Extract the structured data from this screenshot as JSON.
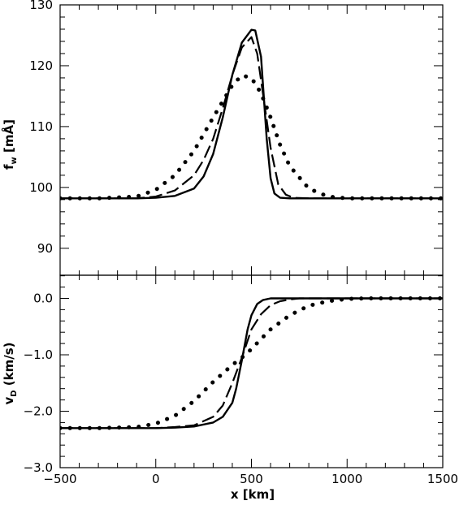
{
  "chart_data": [
    {
      "type": "line",
      "panel": "top",
      "xlim": [
        -500,
        1500
      ],
      "ylim": [
        90,
        130
      ],
      "xlabel": "",
      "ylabel_main": "f",
      "ylabel_sub": "w",
      "ylabel_unit": "[mÅ]",
      "yticks": [
        90,
        100,
        110,
        120,
        130
      ],
      "ytick_labels": [
        "90",
        "100",
        "110",
        "120",
        "130"
      ],
      "grid": false,
      "series": [
        {
          "style": "solid",
          "x": [
            -500,
            -300,
            -100,
            0,
            100,
            200,
            250,
            300,
            350,
            400,
            450,
            500,
            520,
            550,
            580,
            600,
            620,
            650,
            700,
            900,
            1100,
            1300,
            1500
          ],
          "y": [
            98.2,
            98.2,
            98.2,
            98.3,
            98.6,
            99.8,
            101.8,
            105.5,
            111.5,
            118.5,
            123.8,
            125.9,
            125.8,
            121.5,
            108.0,
            101.5,
            99.0,
            98.3,
            98.2,
            98.2,
            98.2,
            98.2,
            98.2
          ]
        },
        {
          "style": "dashed",
          "x": [
            -500,
            -300,
            -100,
            0,
            100,
            200,
            250,
            300,
            350,
            400,
            450,
            500,
            530,
            560,
            600,
            640,
            680,
            720,
            800,
            1000,
            1200,
            1500
          ],
          "y": [
            98.2,
            98.2,
            98.2,
            98.5,
            99.5,
            102.0,
            104.5,
            108.0,
            113.0,
            118.5,
            123.0,
            124.7,
            122.0,
            115.5,
            106.5,
            100.5,
            98.8,
            98.3,
            98.2,
            98.2,
            98.2,
            98.2
          ]
        },
        {
          "style": "dotted",
          "x": [
            -500,
            -300,
            -100,
            0,
            100,
            200,
            300,
            400,
            450,
            500,
            550,
            600,
            650,
            700,
            800,
            900,
            1000,
            1200,
            1500
          ],
          "y": [
            98.2,
            98.2,
            98.5,
            99.6,
            102.0,
            106.0,
            111.5,
            116.8,
            118.4,
            118.0,
            115.5,
            111.5,
            107.0,
            103.5,
            99.8,
            98.5,
            98.2,
            98.2,
            98.2
          ]
        }
      ]
    },
    {
      "type": "line",
      "panel": "bottom",
      "xlim": [
        -500,
        1500
      ],
      "ylim": [
        -3.0,
        0.4
      ],
      "xlabel": "x [km]",
      "ylabel_main": "v",
      "ylabel_sub": "D",
      "ylabel_unit": "(km/s)",
      "xticks": [
        -500,
        0,
        500,
        1000,
        1500
      ],
      "xtick_labels": [
        "−500",
        "0",
        "500",
        "1000",
        "1500"
      ],
      "yticks": [
        0.0,
        -1.0,
        -2.0,
        -3.0
      ],
      "ytick_labels": [
        "0.0",
        "−1.0",
        "−2.0",
        "−3.0"
      ],
      "grid": false,
      "series": [
        {
          "style": "solid",
          "x": [
            -500,
            -300,
            -100,
            0,
            100,
            200,
            300,
            350,
            400,
            420,
            450,
            480,
            500,
            530,
            560,
            600,
            650,
            700,
            900,
            1100,
            1300,
            1500
          ],
          "y": [
            -2.3,
            -2.3,
            -2.3,
            -2.3,
            -2.29,
            -2.27,
            -2.2,
            -2.1,
            -1.85,
            -1.6,
            -1.1,
            -0.55,
            -0.3,
            -0.1,
            -0.03,
            0.0,
            0.0,
            0.0,
            0.0,
            0.0,
            0.0,
            0.0
          ]
        },
        {
          "style": "dashed",
          "x": [
            -500,
            -300,
            -100,
            0,
            100,
            200,
            300,
            350,
            400,
            450,
            500,
            550,
            600,
            650,
            700,
            750,
            800,
            1000,
            1200,
            1500
          ],
          "y": [
            -2.3,
            -2.3,
            -2.3,
            -2.3,
            -2.28,
            -2.25,
            -2.1,
            -1.9,
            -1.5,
            -1.05,
            -0.55,
            -0.28,
            -0.12,
            -0.05,
            -0.02,
            0.0,
            0.0,
            0.0,
            0.0,
            0.0
          ]
        },
        {
          "style": "dotted",
          "x": [
            -500,
            -300,
            -100,
            0,
            100,
            200,
            300,
            400,
            450,
            500,
            550,
            600,
            700,
            800,
            900,
            1000,
            1100,
            1200,
            1500
          ],
          "y": [
            -2.3,
            -2.3,
            -2.28,
            -2.22,
            -2.08,
            -1.82,
            -1.48,
            -1.18,
            -1.05,
            -0.9,
            -0.72,
            -0.55,
            -0.3,
            -0.13,
            -0.05,
            -0.01,
            0.0,
            0.0,
            0.0
          ]
        }
      ]
    }
  ]
}
